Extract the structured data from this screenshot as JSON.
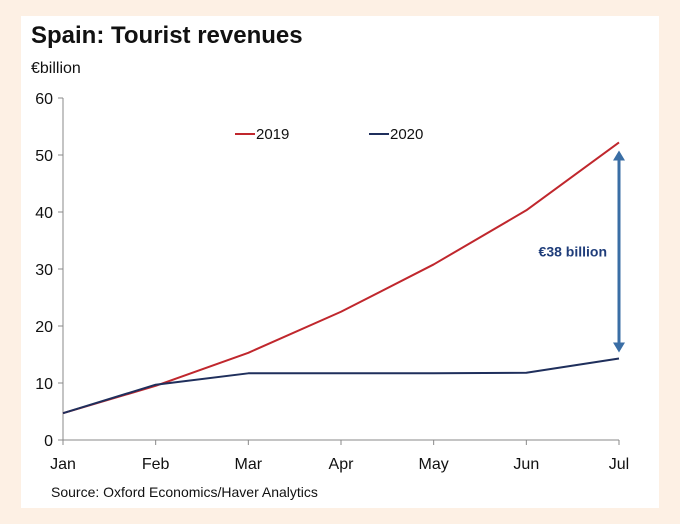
{
  "chart_data": {
    "type": "line",
    "title": "Spain: Tourist revenues",
    "ylabel": "€billion",
    "source": "Source: Oxford Economics/Haver Analytics",
    "categories": [
      "Jan",
      "Feb",
      "Mar",
      "Apr",
      "May",
      "Jun",
      "Jul"
    ],
    "ylim": [
      0,
      60
    ],
    "yticks": [
      0,
      10,
      20,
      30,
      40,
      50,
      60
    ],
    "legend_position": "top-center",
    "grid": false,
    "series": [
      {
        "name": "2019",
        "color": "#c0272d",
        "values": [
          4.7,
          9.5,
          15.3,
          22.5,
          30.8,
          40.3,
          52.2
        ]
      },
      {
        "name": "2020",
        "color": "#1f2f5c",
        "values": [
          4.7,
          9.7,
          11.7,
          11.7,
          11.7,
          11.8,
          14.3
        ]
      }
    ],
    "annotation": {
      "label": "€38 billion",
      "category": "Jul",
      "from": 52.2,
      "to": 14.3,
      "color": "#3a6ea5"
    }
  }
}
